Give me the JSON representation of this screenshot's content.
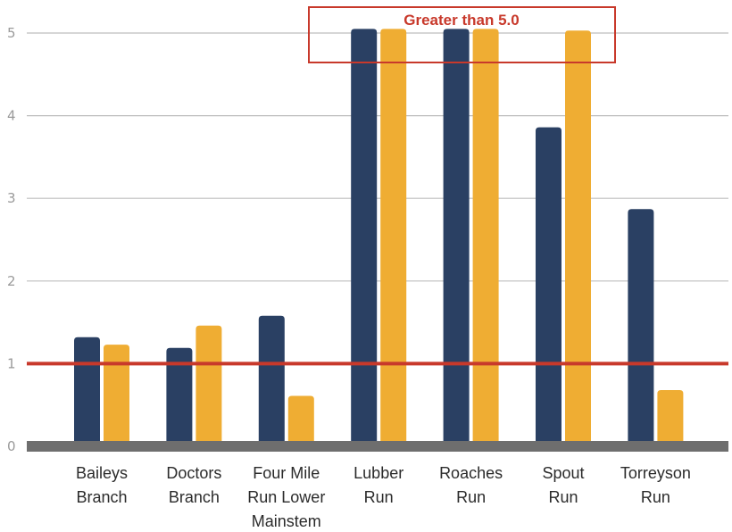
{
  "chart_data": {
    "type": "bar",
    "categories": [
      [
        "Baileys",
        "Branch"
      ],
      [
        "Doctors",
        "Branch"
      ],
      [
        "Four Mile",
        "Run Lower",
        "Mainstem"
      ],
      [
        "Lubber",
        "Run"
      ],
      [
        "Roaches",
        "Run"
      ],
      [
        "Spout",
        "Run"
      ],
      [
        "Torreyson",
        "Run"
      ]
    ],
    "series": [
      {
        "values": [
          1.32,
          1.19,
          1.58,
          5.05,
          5.05,
          3.86,
          2.87
        ],
        "color": "#2a4063"
      },
      {
        "values": [
          1.23,
          1.46,
          0.61,
          5.05,
          5.05,
          5.03,
          0.68
        ],
        "color": "#efad33"
      }
    ],
    "yticks": [
      "0",
      "1",
      "2",
      "3",
      "4",
      "5"
    ],
    "ylim": [
      0,
      5.4
    ],
    "grid": true,
    "reference_line": {
      "value": 1,
      "color": "#c8392b"
    },
    "annotation": {
      "text": "Greater than 5.0",
      "color": "#c8392b"
    },
    "baseline_color": "#6e6e6e",
    "grid_color": "#bdbdbd"
  }
}
